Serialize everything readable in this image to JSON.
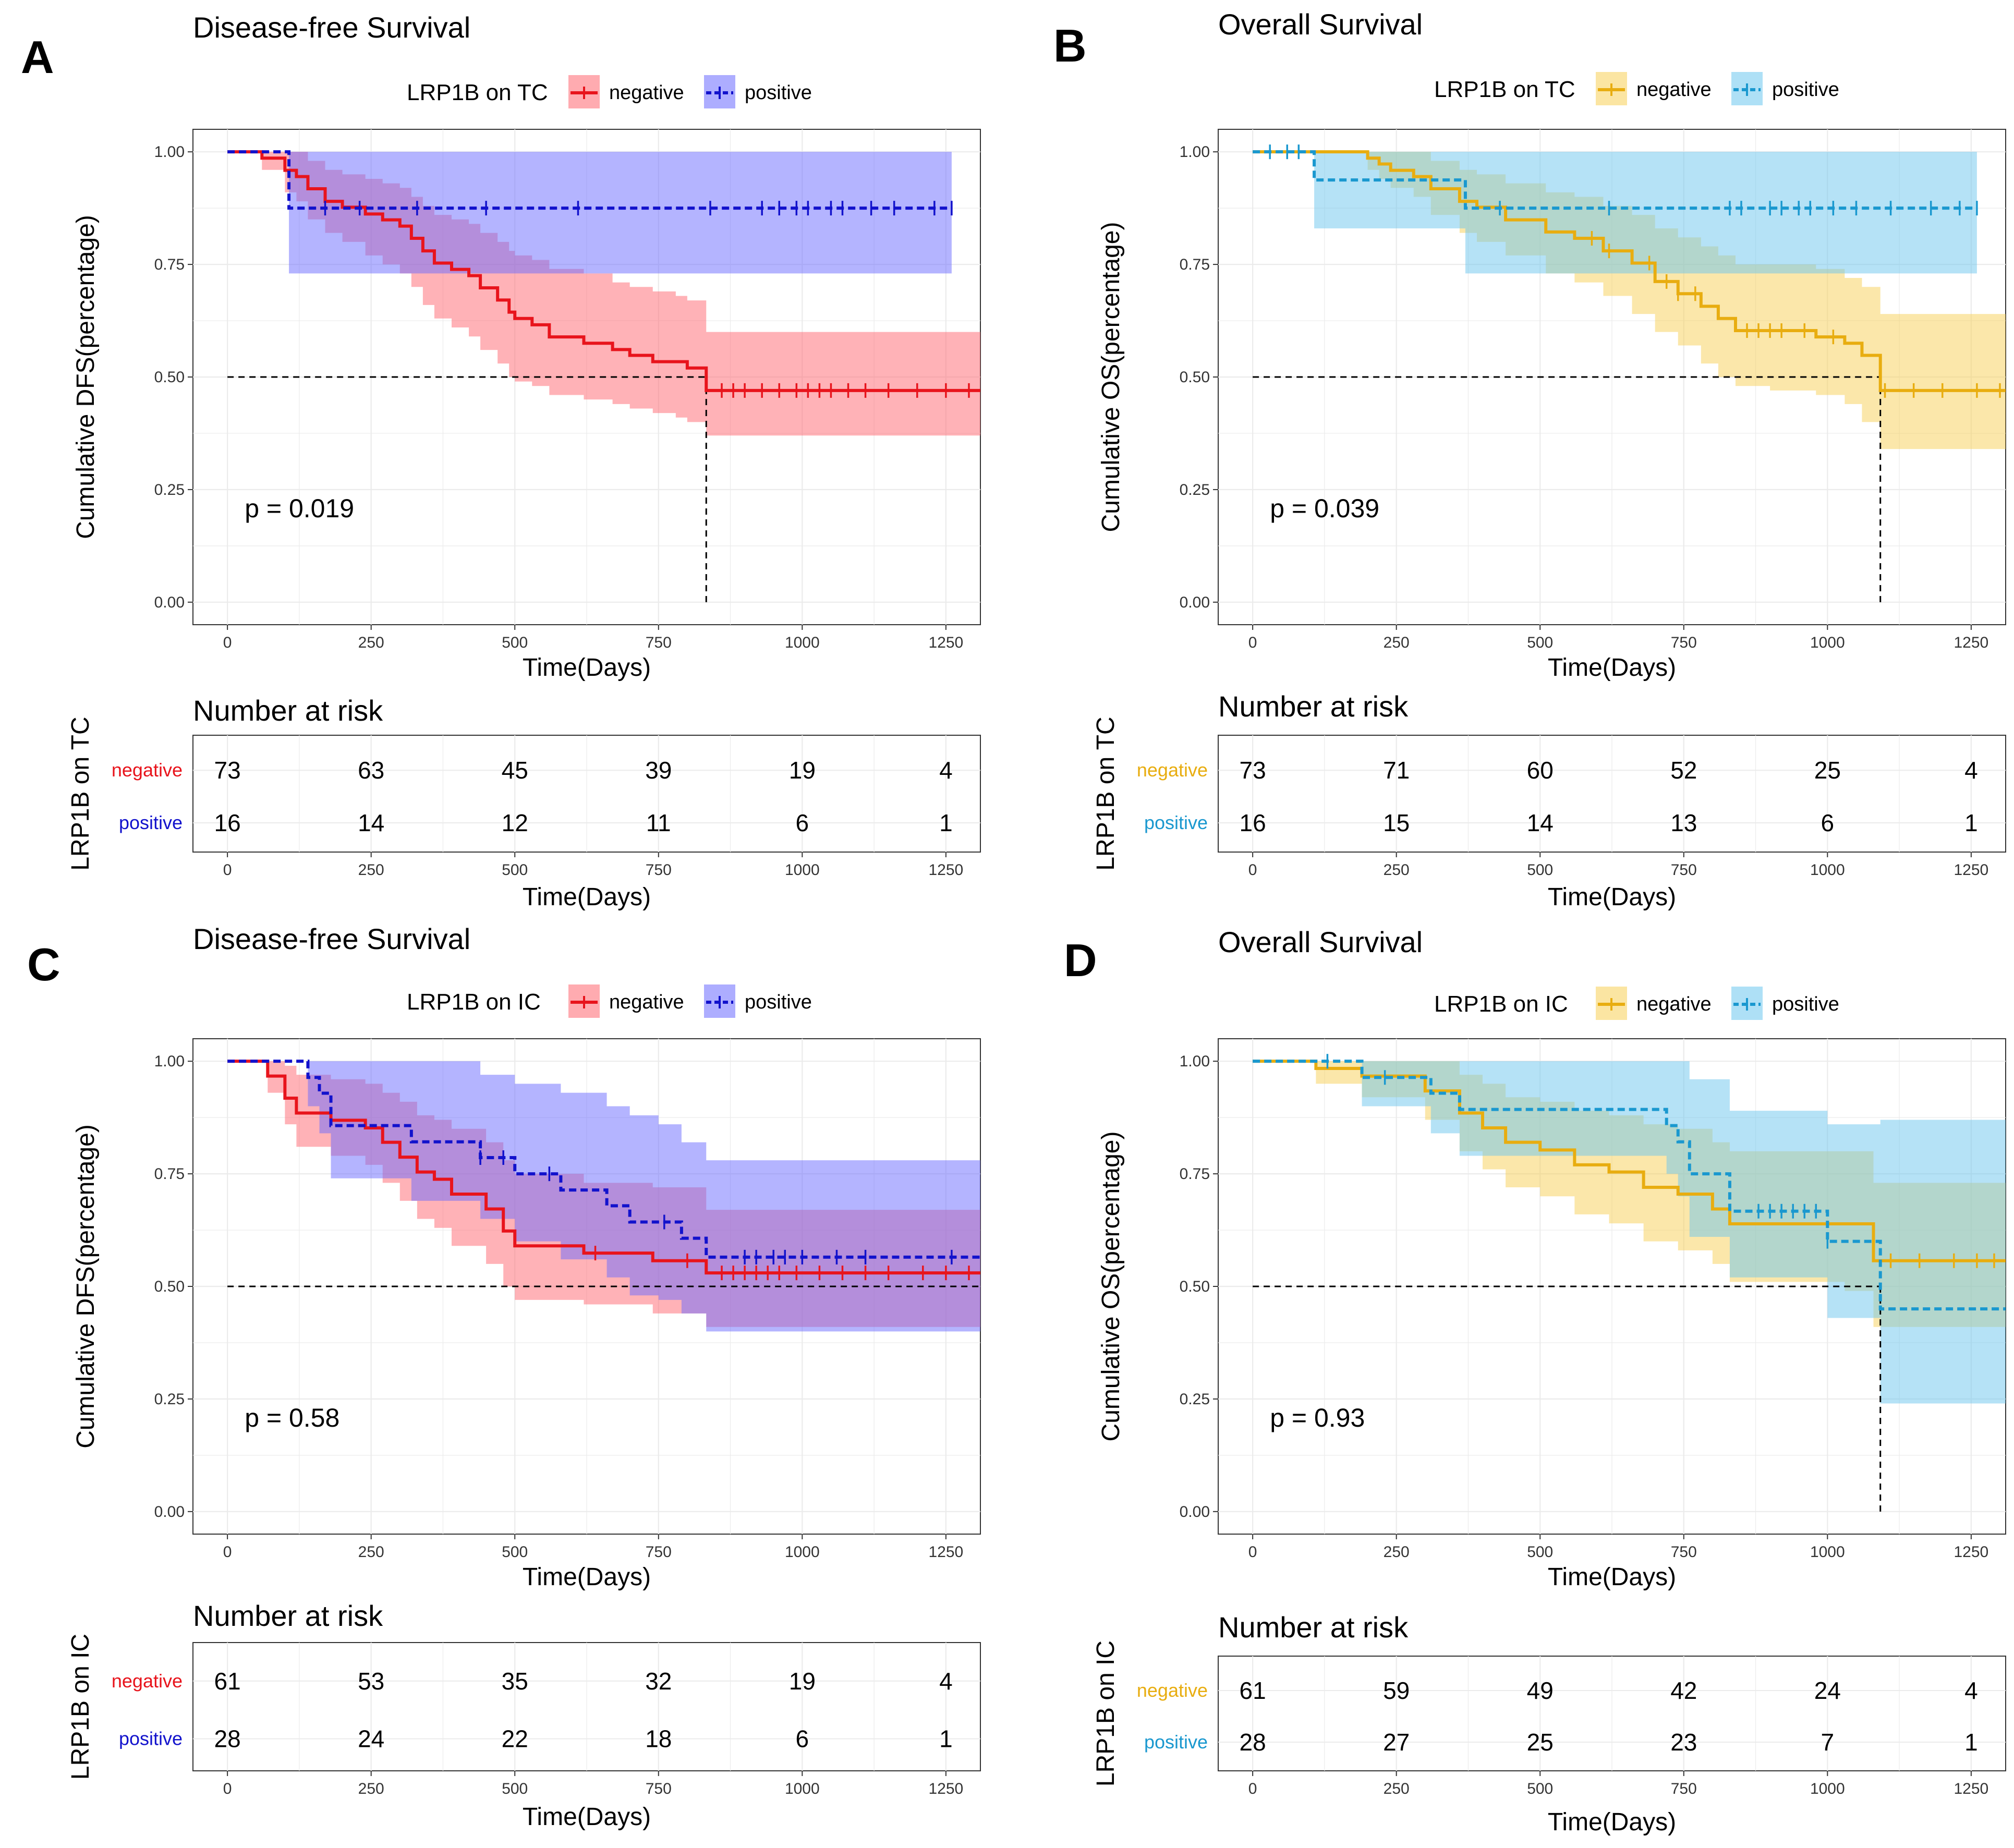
{
  "colors": {
    "red": "#e8141c",
    "red_fill": "#ff6670",
    "blue": "#1212cc",
    "blue_fill": "#6a6aff",
    "gold": "#e8ad10",
    "gold_fill": "#f8cf55",
    "cyan": "#1a98cf",
    "cyan_fill": "#6cc6ee"
  },
  "chart_data": [
    {
      "type": "line",
      "panel": "A",
      "title": "Disease-free Survival",
      "legend_title": "LRP1B on TC",
      "xlabel": "Time(Days)",
      "ylabel": "Cumulative DFS(percentage)",
      "xlim": [
        -60,
        1310
      ],
      "ylim": [
        -0.05,
        1.05
      ],
      "xticks": [
        "0",
        "250",
        "500",
        "750",
        "1000",
        "1250"
      ],
      "yticks": [
        "0.00",
        "0.25",
        "0.50",
        "0.75",
        "1.00"
      ],
      "pvalue": "p = 0.019",
      "median": [
        833
      ],
      "series": [
        {
          "name": "negative",
          "color": "red",
          "dashed": false,
          "x": [
            0,
            60,
            100,
            120,
            140,
            170,
            200,
            240,
            270,
            300,
            320,
            340,
            360,
            390,
            420,
            440,
            470,
            490,
            500,
            530,
            560,
            620,
            670,
            700,
            740,
            780,
            800,
            833,
            1310
          ],
          "y": [
            1.0,
            0.986,
            0.959,
            0.945,
            0.918,
            0.89,
            0.877,
            0.862,
            0.849,
            0.835,
            0.808,
            0.78,
            0.753,
            0.739,
            0.725,
            0.698,
            0.671,
            0.644,
            0.63,
            0.616,
            0.589,
            0.575,
            0.561,
            0.548,
            0.534,
            0.534,
            0.52,
            0.47,
            0.47
          ],
          "lower": [
            1.0,
            0.96,
            0.91,
            0.89,
            0.85,
            0.82,
            0.8,
            0.77,
            0.75,
            0.73,
            0.7,
            0.66,
            0.63,
            0.61,
            0.59,
            0.56,
            0.53,
            0.5,
            0.49,
            0.48,
            0.46,
            0.45,
            0.44,
            0.43,
            0.42,
            0.41,
            0.4,
            0.37,
            0.37
          ],
          "upper": [
            1.0,
            1.0,
            1.0,
            1.0,
            0.98,
            0.96,
            0.95,
            0.94,
            0.93,
            0.92,
            0.9,
            0.88,
            0.86,
            0.85,
            0.84,
            0.82,
            0.8,
            0.78,
            0.77,
            0.76,
            0.74,
            0.73,
            0.71,
            0.7,
            0.69,
            0.68,
            0.67,
            0.6,
            0.6
          ],
          "censor": [
            860,
            880,
            900,
            930,
            960,
            990,
            1010,
            1030,
            1050,
            1080,
            1110,
            1150,
            1200,
            1250,
            1290
          ]
        },
        {
          "name": "positive",
          "color": "blue",
          "dashed": true,
          "x": [
            0,
            107,
            1260
          ],
          "y": [
            1.0,
            0.875,
            0.875
          ],
          "lower": [
            1.0,
            0.73,
            0.73
          ],
          "upper": [
            1.0,
            1.0,
            1.0
          ],
          "censor": [
            170,
            230,
            330,
            450,
            610,
            840,
            930,
            960,
            990,
            1010,
            1050,
            1070,
            1120,
            1160,
            1230,
            1260
          ]
        }
      ],
      "risk_table": {
        "title": "Number at risk",
        "label": "LRP1B on TC",
        "times": [
          "0",
          "250",
          "500",
          "750",
          "1000",
          "1250"
        ],
        "rows": [
          {
            "group": "negative",
            "color": "red",
            "values": [
              "73",
              "63",
              "45",
              "39",
              "19",
              "4"
            ]
          },
          {
            "group": "positive",
            "color": "blue",
            "values": [
              "16",
              "14",
              "12",
              "11",
              "6",
              "1"
            ]
          }
        ],
        "xlabel": "Time(Days)"
      }
    },
    {
      "type": "line",
      "panel": "B",
      "title": "Overall Survival",
      "legend_title": "LRP1B on TC",
      "xlabel": "Time(Days)",
      "ylabel": "Cumulative OS(percentage)",
      "xlim": [
        -60,
        1310
      ],
      "ylim": [
        -0.05,
        1.05
      ],
      "xticks": [
        "0",
        "250",
        "500",
        "750",
        "1000",
        "1250"
      ],
      "yticks": [
        "0.00",
        "0.25",
        "0.50",
        "0.75",
        "1.00"
      ],
      "pvalue": "p = 0.039",
      "median": [
        1092
      ],
      "series": [
        {
          "name": "negative",
          "color": "gold",
          "dashed": false,
          "x": [
            0,
            200,
            220,
            240,
            280,
            310,
            360,
            390,
            440,
            510,
            560,
            610,
            660,
            700,
            740,
            780,
            810,
            840,
            900,
            980,
            1030,
            1060,
            1092,
            1310
          ],
          "y": [
            1.0,
            0.986,
            0.973,
            0.959,
            0.945,
            0.918,
            0.89,
            0.877,
            0.849,
            0.822,
            0.808,
            0.78,
            0.753,
            0.712,
            0.685,
            0.657,
            0.63,
            0.603,
            0.603,
            0.589,
            0.575,
            0.548,
            0.47,
            0.47
          ],
          "lower": [
            1.0,
            0.96,
            0.94,
            0.92,
            0.9,
            0.86,
            0.82,
            0.8,
            0.77,
            0.73,
            0.71,
            0.68,
            0.64,
            0.6,
            0.57,
            0.53,
            0.5,
            0.48,
            0.47,
            0.46,
            0.44,
            0.4,
            0.34,
            0.34
          ],
          "upper": [
            1.0,
            1.0,
            1.0,
            1.0,
            1.0,
            0.98,
            0.96,
            0.95,
            0.93,
            0.91,
            0.9,
            0.88,
            0.86,
            0.83,
            0.81,
            0.79,
            0.77,
            0.75,
            0.75,
            0.74,
            0.72,
            0.7,
            0.64,
            0.64
          ],
          "censor": [
            590,
            620,
            690,
            720,
            740,
            770,
            860,
            880,
            900,
            920,
            960,
            1010,
            1100,
            1150,
            1200,
            1260,
            1300
          ]
        },
        {
          "name": "positive",
          "color": "cyan",
          "dashed": true,
          "x": [
            0,
            107,
            370,
            1260
          ],
          "y": [
            1.0,
            0.9375,
            0.875,
            0.875
          ],
          "lower": [
            1.0,
            0.83,
            0.73,
            0.73
          ],
          "upper": [
            1.0,
            1.0,
            1.0,
            1.0
          ],
          "censor": [
            30,
            60,
            80,
            430,
            620,
            830,
            850,
            900,
            920,
            950,
            970,
            1010,
            1050,
            1110,
            1180,
            1230,
            1260
          ]
        }
      ],
      "risk_table": {
        "title": "Number at risk",
        "label": "LRP1B on TC",
        "times": [
          "0",
          "250",
          "500",
          "750",
          "1000",
          "1250"
        ],
        "rows": [
          {
            "group": "negative",
            "color": "gold",
            "values": [
              "73",
              "71",
              "60",
              "52",
              "25",
              "4"
            ]
          },
          {
            "group": "positive",
            "color": "cyan",
            "values": [
              "16",
              "15",
              "14",
              "13",
              "6",
              "1"
            ]
          }
        ],
        "xlabel": "Time(Days)"
      }
    },
    {
      "type": "line",
      "panel": "C",
      "title": "Disease-free Survival",
      "legend_title": "LRP1B on IC",
      "xlabel": "Time(Days)",
      "ylabel": "Cumulative DFS(percentage)",
      "xlim": [
        -60,
        1310
      ],
      "ylim": [
        -0.05,
        1.05
      ],
      "xticks": [
        "0",
        "250",
        "500",
        "750",
        "1000",
        "1250"
      ],
      "yticks": [
        "0.00",
        "0.25",
        "0.50",
        "0.75",
        "1.00"
      ],
      "pvalue": "p = 0.58",
      "median": [],
      "series": [
        {
          "name": "negative",
          "color": "red",
          "dashed": false,
          "x": [
            0,
            70,
            100,
            120,
            180,
            240,
            270,
            300,
            330,
            360,
            390,
            450,
            480,
            500,
            560,
            620,
            740,
            833,
            1310
          ],
          "y": [
            1.0,
            0.967,
            0.918,
            0.885,
            0.869,
            0.852,
            0.82,
            0.787,
            0.754,
            0.738,
            0.705,
            0.672,
            0.623,
            0.59,
            0.59,
            0.574,
            0.557,
            0.53,
            0.53
          ],
          "lower": [
            1.0,
            0.93,
            0.86,
            0.81,
            0.79,
            0.77,
            0.73,
            0.69,
            0.65,
            0.63,
            0.59,
            0.55,
            0.5,
            0.47,
            0.47,
            0.46,
            0.44,
            0.41,
            0.41
          ],
          "upper": [
            1.0,
            1.0,
            0.99,
            0.97,
            0.96,
            0.95,
            0.93,
            0.91,
            0.88,
            0.87,
            0.85,
            0.82,
            0.78,
            0.75,
            0.75,
            0.73,
            0.72,
            0.67,
            0.67
          ],
          "censor": [
            640,
            800,
            860,
            880,
            900,
            920,
            940,
            960,
            990,
            1030,
            1070,
            1110,
            1150,
            1210,
            1250,
            1290
          ]
        },
        {
          "name": "positive",
          "color": "blue",
          "dashed": true,
          "x": [
            0,
            140,
            160,
            180,
            220,
            280,
            320,
            440,
            500,
            580,
            660,
            700,
            750,
            790,
            833,
            1310
          ],
          "y": [
            1.0,
            0.964,
            0.929,
            0.857,
            0.857,
            0.857,
            0.821,
            0.786,
            0.75,
            0.714,
            0.679,
            0.643,
            0.643,
            0.607,
            0.565,
            0.565
          ],
          "lower": [
            1.0,
            0.9,
            0.84,
            0.74,
            0.74,
            0.74,
            0.69,
            0.65,
            0.6,
            0.56,
            0.52,
            0.48,
            0.47,
            0.44,
            0.4,
            0.4
          ],
          "upper": [
            1.0,
            1.0,
            1.0,
            1.0,
            1.0,
            1.0,
            1.0,
            0.97,
            0.95,
            0.93,
            0.9,
            0.88,
            0.86,
            0.82,
            0.78,
            0.78
          ],
          "censor": [
            440,
            480,
            560,
            760,
            900,
            920,
            950,
            970,
            1000,
            1060,
            1110,
            1260
          ]
        }
      ],
      "risk_table": {
        "title": "Number at risk",
        "label": "LRP1B on IC",
        "times": [
          "0",
          "250",
          "500",
          "750",
          "1000",
          "1250"
        ],
        "rows": [
          {
            "group": "negative",
            "color": "red",
            "values": [
              "61",
              "53",
              "35",
              "32",
              "19",
              "4"
            ]
          },
          {
            "group": "positive",
            "color": "blue",
            "values": [
              "28",
              "24",
              "22",
              "18",
              "6",
              "1"
            ]
          }
        ],
        "xlabel": "Time(Days)"
      }
    },
    {
      "type": "line",
      "panel": "D",
      "title": "Overall Survival",
      "legend_title": "LRP1B on IC",
      "xlabel": "Time(Days)",
      "ylabel": "Cumulative OS(percentage)",
      "xlim": [
        -60,
        1310
      ],
      "ylim": [
        -0.05,
        1.05
      ],
      "xticks": [
        "0",
        "250",
        "500",
        "750",
        "1000",
        "1250"
      ],
      "yticks": [
        "0.00",
        "0.25",
        "0.50",
        "0.75",
        "1.00"
      ],
      "pvalue": "p = 0.93",
      "median": [
        1092
      ],
      "series": [
        {
          "name": "negative",
          "color": "gold",
          "dashed": false,
          "x": [
            0,
            110,
            190,
            300,
            360,
            400,
            440,
            500,
            560,
            620,
            680,
            740,
            800,
            830,
            900,
            1030,
            1080,
            1310
          ],
          "y": [
            1.0,
            0.984,
            0.967,
            0.934,
            0.885,
            0.852,
            0.82,
            0.803,
            0.77,
            0.754,
            0.72,
            0.705,
            0.672,
            0.639,
            0.639,
            0.639,
            0.557,
            0.557
          ],
          "lower": [
            1.0,
            0.95,
            0.92,
            0.87,
            0.8,
            0.76,
            0.72,
            0.7,
            0.66,
            0.64,
            0.6,
            0.58,
            0.55,
            0.51,
            0.51,
            0.49,
            0.41,
            0.41
          ],
          "upper": [
            1.0,
            1.0,
            1.0,
            1.0,
            0.97,
            0.95,
            0.92,
            0.91,
            0.89,
            0.88,
            0.86,
            0.85,
            0.82,
            0.8,
            0.8,
            0.8,
            0.73,
            0.73
          ],
          "censor": [
            1110,
            1160,
            1220,
            1260,
            1290
          ]
        },
        {
          "name": "positive",
          "color": "cyan",
          "dashed": true,
          "x": [
            0,
            190,
            310,
            360,
            720,
            740,
            760,
            830,
            1000,
            1092,
            1310
          ],
          "y": [
            1.0,
            0.964,
            0.929,
            0.893,
            0.857,
            0.821,
            0.75,
            0.667,
            0.6,
            0.45,
            0.45
          ],
          "lower": [
            1.0,
            0.9,
            0.84,
            0.79,
            0.75,
            0.7,
            0.61,
            0.52,
            0.43,
            0.24,
            0.24
          ],
          "upper": [
            1.0,
            1.0,
            1.0,
            1.0,
            1.0,
            1.0,
            0.96,
            0.89,
            0.86,
            0.87,
            0.87
          ],
          "censor": [
            130,
            230,
            880,
            900,
            920,
            940,
            960,
            980,
            1000
          ]
        }
      ],
      "risk_table": {
        "title": "Number at risk",
        "label": "LRP1B on IC",
        "times": [
          "0",
          "250",
          "500",
          "750",
          "1000",
          "1250"
        ],
        "rows": [
          {
            "group": "negative",
            "color": "gold",
            "values": [
              "61",
              "59",
              "49",
              "42",
              "24",
              "4"
            ]
          },
          {
            "group": "positive",
            "color": "cyan",
            "values": [
              "28",
              "27",
              "25",
              "23",
              "7",
              "1"
            ]
          }
        ],
        "xlabel": "Time(Days)"
      }
    }
  ]
}
